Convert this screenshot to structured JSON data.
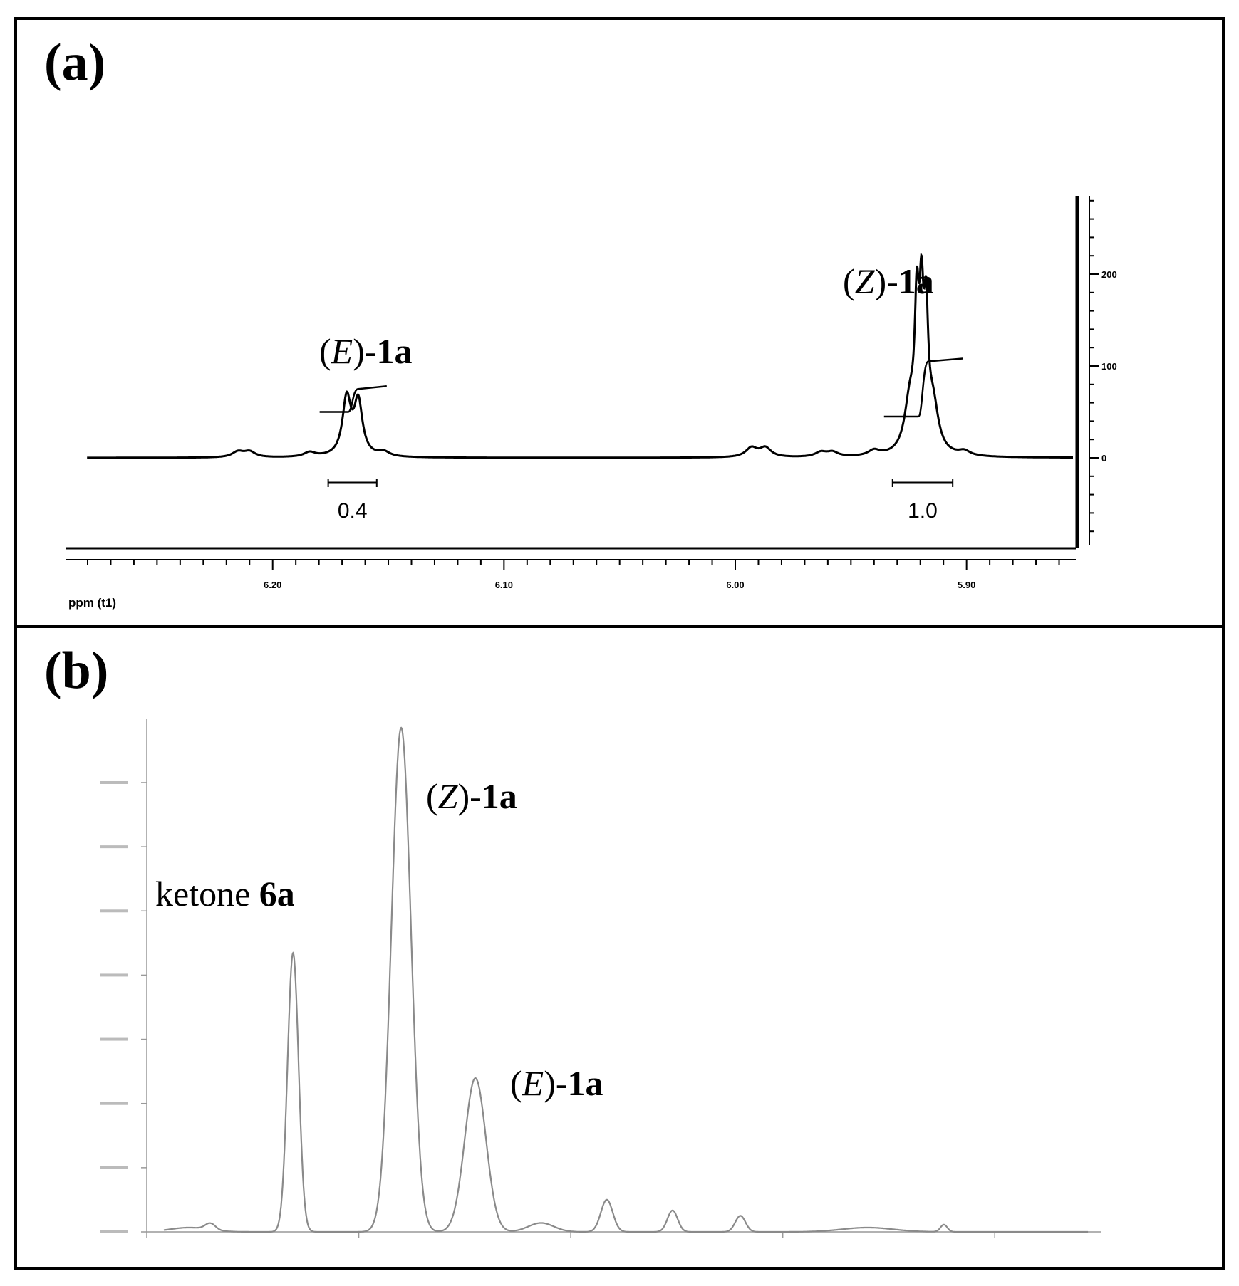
{
  "panels": {
    "a": {
      "letter": "(a)"
    },
    "b": {
      "letter": "(b)"
    }
  },
  "chart_data": [
    {
      "type": "line",
      "panel": "(a)",
      "title": "",
      "xlabel": "ppm (t1)",
      "ylabel": "",
      "x_reversed": true,
      "xlim": [
        6.284,
        5.854
      ],
      "ylim": [
        -100,
        300
      ],
      "x_ticks": [
        {
          "value": 6.2,
          "label": "6.20"
        },
        {
          "value": 6.1,
          "label": "6.10"
        },
        {
          "value": 6.0,
          "label": "6.00"
        },
        {
          "value": 5.9,
          "label": "5.90"
        }
      ],
      "x_minor_step": 0.01,
      "y_ticks": [
        {
          "value": 200,
          "label": "200"
        },
        {
          "value": 100,
          "label": "100"
        },
        {
          "value": 0,
          "label": "0"
        }
      ],
      "y_minor_step": 20,
      "peaks": [
        {
          "center": 6.215,
          "height": 6,
          "width": 0.003
        },
        {
          "center": 6.21,
          "height": 6,
          "width": 0.003
        },
        {
          "center": 6.184,
          "height": 5,
          "width": 0.003
        },
        {
          "center": 6.168,
          "height": 62,
          "width": 0.0022
        },
        {
          "center": 6.163,
          "height": 58,
          "width": 0.0022
        },
        {
          "center": 6.152,
          "height": 5,
          "width": 0.003
        },
        {
          "center": 5.993,
          "height": 10,
          "width": 0.003
        },
        {
          "center": 5.987,
          "height": 10,
          "width": 0.003
        },
        {
          "center": 5.963,
          "height": 5,
          "width": 0.003
        },
        {
          "center": 5.958,
          "height": 5,
          "width": 0.003
        },
        {
          "center": 5.94,
          "height": 6,
          "width": 0.003
        },
        {
          "center": 5.9245,
          "height": 55,
          "width": 0.0028
        },
        {
          "center": 5.9215,
          "height": 135,
          "width": 0.0011
        },
        {
          "center": 5.9195,
          "height": 135,
          "width": 0.0011
        },
        {
          "center": 5.9175,
          "height": 125,
          "width": 0.0011
        },
        {
          "center": 5.9145,
          "height": 50,
          "width": 0.0028
        },
        {
          "center": 5.901,
          "height": 5,
          "width": 0.003
        }
      ],
      "integrals": [
        {
          "label": "0.4",
          "from": 6.176,
          "to": 6.155,
          "value": 0.4
        },
        {
          "label": "1.0",
          "from": 5.932,
          "to": 5.906,
          "value": 1.0
        }
      ],
      "annotations": [
        {
          "x": 6.165,
          "name_italic": "E",
          "compound": "1a"
        },
        {
          "x": 5.921,
          "name_italic": "Z",
          "compound": "1a"
        }
      ]
    },
    {
      "type": "line",
      "panel": "(b)",
      "title": "",
      "xlabel": "",
      "ylabel": "",
      "xlim": [
        0,
        22.5
      ],
      "ylim": [
        0,
        1.4
      ],
      "peaks": [
        {
          "center": 1.0,
          "height": 0.012,
          "width": 0.45
        },
        {
          "center": 1.5,
          "height": 0.018,
          "width": 0.12
        },
        {
          "center": 3.45,
          "height": 0.78,
          "width": 0.13
        },
        {
          "center": 6.0,
          "height": 1.41,
          "width": 0.23
        },
        {
          "center": 7.75,
          "height": 0.43,
          "width": 0.25
        },
        {
          "center": 9.3,
          "height": 0.025,
          "width": 0.3
        },
        {
          "center": 10.85,
          "height": 0.09,
          "width": 0.14
        },
        {
          "center": 12.4,
          "height": 0.06,
          "width": 0.12
        },
        {
          "center": 14.0,
          "height": 0.045,
          "width": 0.12
        },
        {
          "center": 17.0,
          "height": 0.012,
          "width": 0.6
        },
        {
          "center": 18.8,
          "height": 0.02,
          "width": 0.08
        }
      ],
      "annotations": [
        {
          "x": 3.45,
          "plain": "ketone ",
          "compound": "6a"
        },
        {
          "x": 6.0,
          "name_italic": "Z",
          "compound": "1a"
        },
        {
          "x": 7.75,
          "name_italic": "E",
          "compound": "1a"
        }
      ]
    }
  ]
}
